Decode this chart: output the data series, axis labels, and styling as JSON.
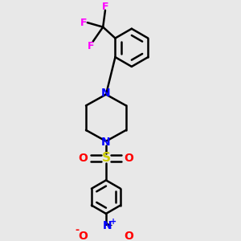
{
  "bg_color": "#e8e8e8",
  "bond_color": "#000000",
  "N_color": "#0000ff",
  "O_color": "#ff0000",
  "S_color": "#cccc00",
  "F_color": "#ff00ff",
  "line_width": 1.8,
  "figsize": [
    3.0,
    3.0
  ],
  "dpi": 100,
  "xlim": [
    0,
    10
  ],
  "ylim": [
    0,
    10
  ]
}
